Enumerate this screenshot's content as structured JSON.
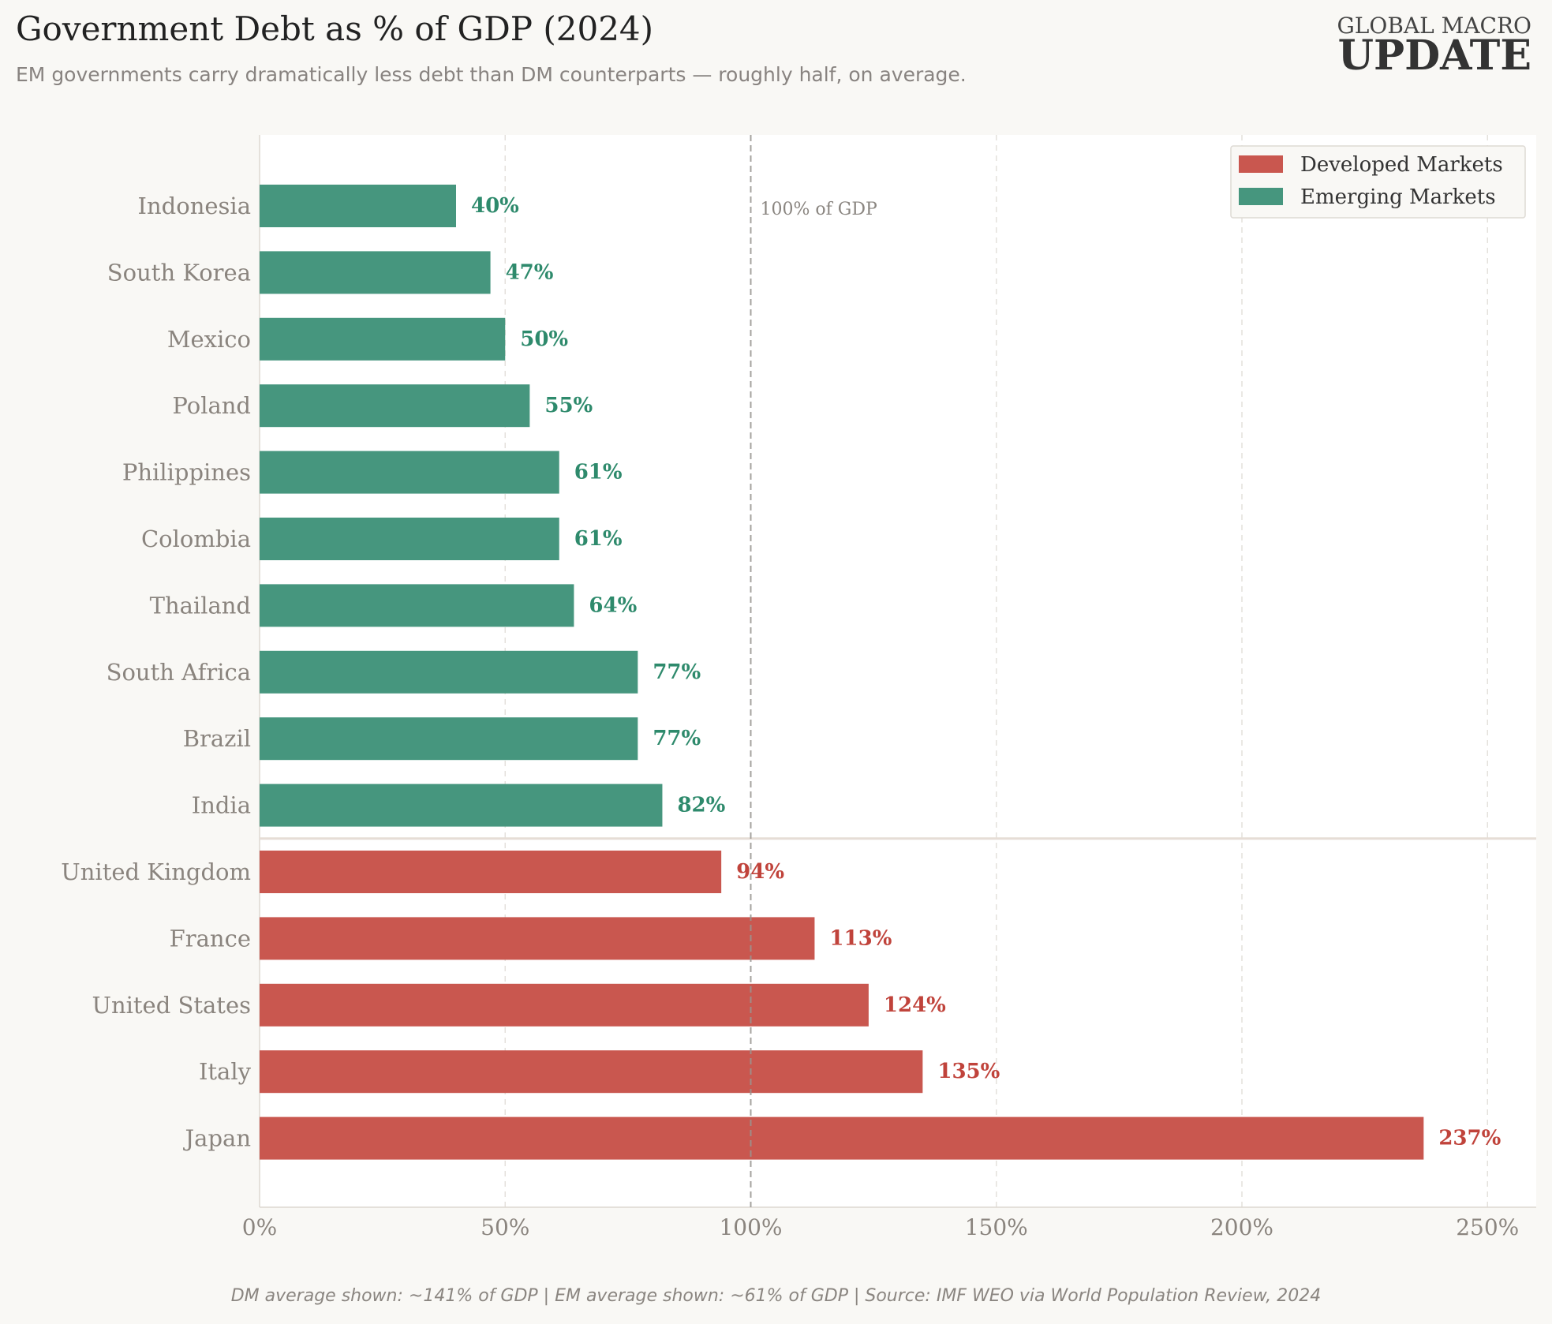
{
  "header": {
    "title": "Government Debt as % of GDP (2024)",
    "subtitle": "EM governments carry dramatically less debt than DM counterparts — roughly half, on average.",
    "brand_top": "GLOBAL MACRO",
    "brand_bottom": "UPDATE"
  },
  "footer": {
    "note": "DM average shown: ~141% of GDP  |  EM average shown: ~61% of GDP  |  Source: IMF WEO via World Population Review, 2024"
  },
  "colors": {
    "developed": "#c9574f",
    "emerging": "#46967e",
    "developed_label": "#c0433b",
    "emerging_label": "#2e8a6c"
  },
  "chart_data": {
    "type": "bar",
    "orientation": "horizontal",
    "categories": [
      "Indonesia",
      "South Korea",
      "Mexico",
      "Poland",
      "Philippines",
      "Colombia",
      "Thailand",
      "South Africa",
      "Brazil",
      "India",
      "United Kingdom",
      "France",
      "United States",
      "Italy",
      "Japan"
    ],
    "values": [
      40,
      47,
      50,
      55,
      61,
      61,
      64,
      77,
      77,
      82,
      94,
      113,
      124,
      135,
      237
    ],
    "value_labels": [
      "40%",
      "47%",
      "50%",
      "55%",
      "61%",
      "61%",
      "64%",
      "77%",
      "77%",
      "82%",
      "94%",
      "113%",
      "124%",
      "135%",
      "237%"
    ],
    "groups": [
      "Emerging Markets",
      "Emerging Markets",
      "Emerging Markets",
      "Emerging Markets",
      "Emerging Markets",
      "Emerging Markets",
      "Emerging Markets",
      "Emerging Markets",
      "Emerging Markets",
      "Emerging Markets",
      "Developed Markets",
      "Developed Markets",
      "Developed Markets",
      "Developed Markets",
      "Developed Markets"
    ],
    "legend": [
      "Developed Markets",
      "Emerging Markets"
    ],
    "legend_position": "top-right",
    "xlim": [
      0,
      260
    ],
    "xticks": [
      0,
      50,
      100,
      150,
      200,
      250
    ],
    "xtick_labels": [
      "0%",
      "50%",
      "100%",
      "150%",
      "200%",
      "250%"
    ],
    "reference_line": {
      "value": 100,
      "label": "100% of GDP"
    },
    "grid": "vertical dashed",
    "xlabel": "",
    "ylabel": ""
  }
}
